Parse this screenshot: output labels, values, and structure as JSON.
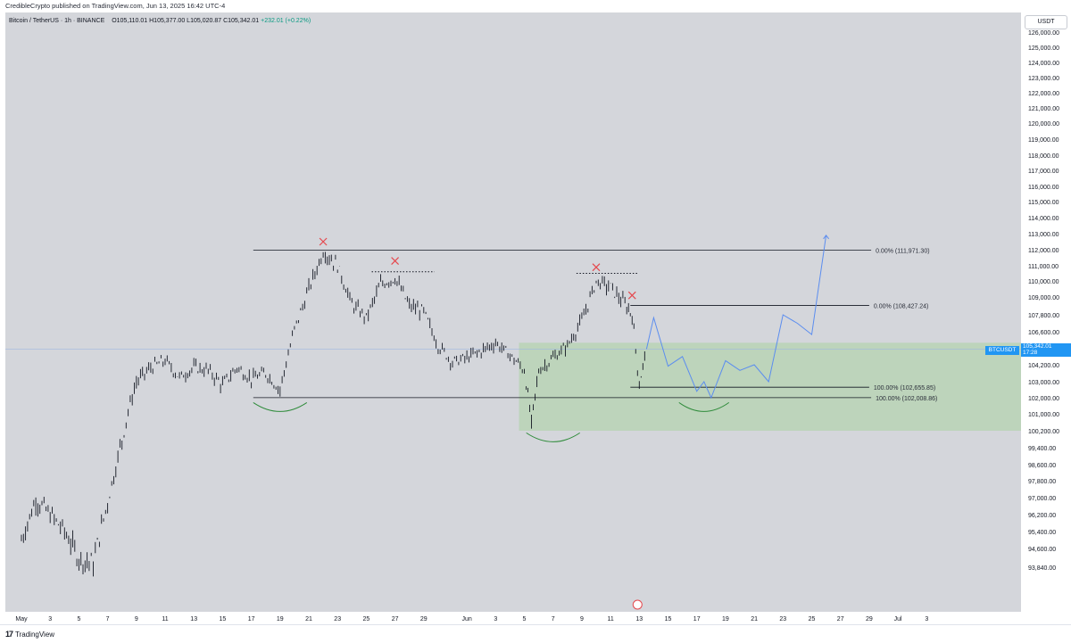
{
  "header": {
    "published": "CredibleCrypto published on TradingView.com, Jun 13, 2025 16:42 UTC-4"
  },
  "symbol": {
    "name": "Bitcoin / TetherUS · 1h · BINANCE",
    "open": "O105,110.01",
    "high": "H105,377.00",
    "low": "L105,020.87",
    "close": "C105,342.01",
    "change": "+232.01 (+0.22%)"
  },
  "currency_label": "USDT",
  "price_tag": {
    "symbol": "BTCUSDT",
    "price": "105,342.01",
    "countdown": "17:28"
  },
  "footer": {
    "brand": "TradingView"
  },
  "chart_data": {
    "type": "line",
    "title": "Bitcoin / TetherUS · 1h · BINANCE",
    "ylim": [
      93200,
      126400
    ],
    "y_ticks": [
      "126,000.00",
      "125,000.00",
      "124,000.00",
      "123,000.00",
      "122,000.00",
      "121,000.00",
      "120,000.00",
      "119,000.00",
      "118,000.00",
      "117,000.00",
      "116,000.00",
      "115,000.00",
      "114,000.00",
      "113,000.00",
      "112,000.00",
      "111,000.00",
      "110,000.00",
      "109,000.00",
      "107,800.00",
      "106,600.00",
      "104,200.00",
      "103,000.00",
      "102,000.00",
      "101,000.00",
      "100,200.00",
      "99,400.00",
      "98,600.00",
      "97,800.00",
      "97,000.00",
      "96,200.00",
      "95,400.00",
      "94,600.00",
      "93,840.00"
    ],
    "x_ticks": [
      "May",
      "3",
      "5",
      "7",
      "9",
      "11",
      "13",
      "15",
      "17",
      "19",
      "21",
      "23",
      "25",
      "27",
      "29",
      "Jun",
      "3",
      "5",
      "7",
      "9",
      "11",
      "13",
      "15",
      "17",
      "19",
      "21",
      "23",
      "25",
      "27",
      "29",
      "Jul",
      "3"
    ],
    "price_series": {
      "name": "BTCUSDT",
      "x_days_label": "date",
      "points": [
        [
          "May 1",
          95000
        ],
        [
          "May 2",
          96900
        ],
        [
          "May 3",
          96200
        ],
        [
          "May 4",
          95400
        ],
        [
          "May 5",
          94200
        ],
        [
          "May 6",
          94000
        ],
        [
          "May 7",
          96800
        ],
        [
          "May 8",
          99800
        ],
        [
          "May 9",
          103000
        ],
        [
          "May 10",
          104000
        ],
        [
          "May 11",
          104500
        ],
        [
          "May 12",
          103300
        ],
        [
          "May 13",
          104000
        ],
        [
          "May 14",
          103800
        ],
        [
          "May 15",
          102800
        ],
        [
          "May 16",
          104000
        ],
        [
          "May 17",
          103200
        ],
        [
          "May 18",
          103600
        ],
        [
          "May 19",
          102500
        ],
        [
          "May 20",
          106800
        ],
        [
          "May 21",
          109500
        ],
        [
          "May 22",
          111900
        ],
        [
          "May 23",
          111000
        ],
        [
          "May 24",
          108500
        ],
        [
          "May 25",
          107600
        ],
        [
          "May 26",
          109800
        ],
        [
          "May 27",
          110200
        ],
        [
          "May 28",
          108400
        ],
        [
          "May 29",
          108000
        ],
        [
          "May 30",
          105600
        ],
        [
          "May 31",
          104400
        ],
        [
          "Jun 1",
          104700
        ],
        [
          "Jun 2",
          105200
        ],
        [
          "Jun 3",
          105800
        ],
        [
          "Jun 4",
          104900
        ],
        [
          "Jun 5",
          103800
        ],
        [
          "Jun 5.5",
          100400
        ],
        [
          "Jun 6",
          103800
        ],
        [
          "Jun 7",
          104700
        ],
        [
          "Jun 8",
          105600
        ],
        [
          "Jun 9",
          107400
        ],
        [
          "Jun 10",
          110000
        ],
        [
          "Jun 11",
          109600
        ],
        [
          "Jun 12",
          108500
        ],
        [
          "Jun 12.5",
          107800
        ],
        [
          "Jun 13",
          102800
        ],
        [
          "Jun 13.5",
          105342
        ]
      ]
    },
    "projection_series": {
      "name": "projection",
      "color": "#5b8def",
      "points": [
        [
          "Jun 13.5",
          105342
        ],
        [
          "Jun 14",
          107600
        ],
        [
          "Jun 15",
          104100
        ],
        [
          "Jun 16",
          104800
        ],
        [
          "Jun 17",
          102400
        ],
        [
          "Jun 17.5",
          103000
        ],
        [
          "Jun 18",
          102000
        ],
        [
          "Jun 19",
          104500
        ],
        [
          "Jun 20",
          103800
        ],
        [
          "Jun 21",
          104200
        ],
        [
          "Jun 22",
          103000
        ],
        [
          "Jun 23",
          107800
        ],
        [
          "Jun 24",
          107200
        ],
        [
          "Jun 25",
          106400
        ],
        [
          "Jun 26",
          112900
        ]
      ]
    },
    "levels": [
      {
        "label": "0.00% (111,971.30)",
        "value": 111971.3
      },
      {
        "label": "0.00% (108,427.24)",
        "value": 108427.24
      },
      {
        "label": "100.00% (102,655.85)",
        "value": 102655.85
      },
      {
        "label": "100.00% (102,008.86)",
        "value": 102008.86
      }
    ],
    "demand_zone": {
      "from": 100200,
      "to": 105800,
      "color": "#b9d3b5"
    },
    "x_marks": 4,
    "colors": {
      "background": "#d4d6db",
      "candles": "#131722",
      "reject_mark": "#e5484d",
      "support_arc": "#2e8b3a",
      "price_tag": "#2196f3"
    }
  }
}
